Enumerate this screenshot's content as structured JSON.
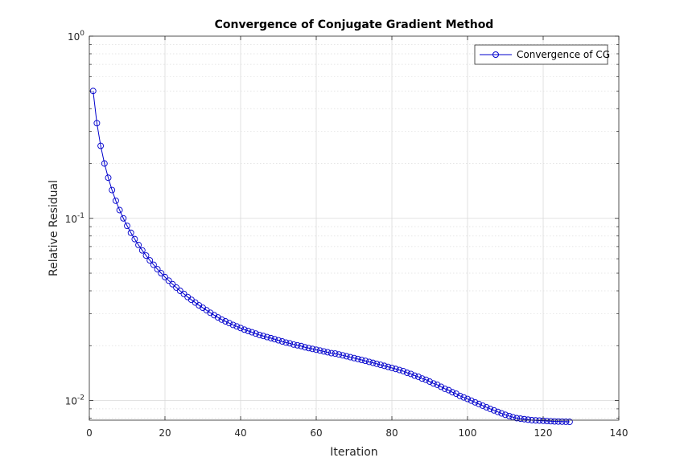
{
  "chart_data": {
    "type": "line",
    "title": "Convergence of Conjugate Gradient Method",
    "xlabel": "Iteration",
    "ylabel": "Relative Residual",
    "xlim": [
      0,
      140
    ],
    "ylim": [
      0.0078,
      1
    ],
    "yscale": "log",
    "grid": true,
    "minor_grid": true,
    "legend_position": "top-right",
    "x_ticks": [
      0,
      20,
      40,
      60,
      80,
      100,
      120,
      140
    ],
    "y_ticks": [
      {
        "value": 0.01,
        "base": "10",
        "exp": "-2"
      },
      {
        "value": 0.1,
        "base": "10",
        "exp": "-1"
      },
      {
        "value": 1,
        "base": "10",
        "exp": "0"
      }
    ],
    "series": [
      {
        "name": "Convergence of CG",
        "color": "#0000cc",
        "marker": "circle",
        "x": [
          1,
          2,
          3,
          4,
          5,
          6,
          7,
          8,
          9,
          10,
          11,
          12,
          13,
          14,
          15,
          16,
          17,
          18,
          19,
          20,
          21,
          22,
          23,
          24,
          25,
          26,
          27,
          28,
          29,
          30,
          31,
          32,
          33,
          34,
          35,
          36,
          37,
          38,
          39,
          40,
          41,
          42,
          43,
          44,
          45,
          46,
          47,
          48,
          49,
          50,
          51,
          52,
          53,
          54,
          55,
          56,
          57,
          58,
          59,
          60,
          61,
          62,
          63,
          64,
          65,
          66,
          67,
          68,
          69,
          70,
          71,
          72,
          73,
          74,
          75,
          76,
          77,
          78,
          79,
          80,
          81,
          82,
          83,
          84,
          85,
          86,
          87,
          88,
          89,
          90,
          91,
          92,
          93,
          94,
          95,
          96,
          97,
          98,
          99,
          100,
          101,
          102,
          103,
          104,
          105,
          106,
          107,
          108,
          109,
          110,
          111,
          112,
          113,
          114,
          115,
          116,
          117,
          118,
          119,
          120,
          121,
          122,
          123,
          124,
          125,
          126,
          127
        ],
        "y": [
          0.5,
          0.333,
          0.25,
          0.2,
          0.167,
          0.143,
          0.125,
          0.111,
          0.1,
          0.0909,
          0.0833,
          0.0769,
          0.0714,
          0.0667,
          0.0625,
          0.0588,
          0.0556,
          0.0526,
          0.05,
          0.0476,
          0.0455,
          0.0435,
          0.0417,
          0.04,
          0.0385,
          0.037,
          0.0357,
          0.0345,
          0.0333,
          0.0323,
          0.0313,
          0.0303,
          0.0294,
          0.0286,
          0.0278,
          0.0272,
          0.0266,
          0.026,
          0.0255,
          0.025,
          0.0245,
          0.0241,
          0.0237,
          0.0233,
          0.0229,
          0.0226,
          0.0223,
          0.022,
          0.0217,
          0.0214,
          0.0211,
          0.0208,
          0.0206,
          0.0203,
          0.0201,
          0.0199,
          0.0196,
          0.0194,
          0.0192,
          0.019,
          0.0188,
          0.0186,
          0.0184,
          0.0182,
          0.0181,
          0.0179,
          0.0177,
          0.0175,
          0.0173,
          0.0171,
          0.0169,
          0.0167,
          0.0165,
          0.0163,
          0.0161,
          0.0159,
          0.0157,
          0.0155,
          0.0153,
          0.0151,
          0.0149,
          0.0147,
          0.0145,
          0.0142,
          0.014,
          0.0137,
          0.0135,
          0.0132,
          0.013,
          0.0127,
          0.0124,
          0.0122,
          0.0119,
          0.0116,
          0.0114,
          0.0111,
          0.0109,
          0.0106,
          0.0104,
          0.0102,
          0.00998,
          0.00977,
          0.00957,
          0.00937,
          0.00918,
          0.009,
          0.00883,
          0.00866,
          0.0085,
          0.00835,
          0.00822,
          0.0081,
          0.008,
          0.00795,
          0.0079,
          0.00785,
          0.0078,
          0.00778,
          0.00776,
          0.00774,
          0.00772,
          0.0077,
          0.00768,
          0.00767,
          0.00766,
          0.00765,
          0.00764
        ]
      }
    ]
  }
}
